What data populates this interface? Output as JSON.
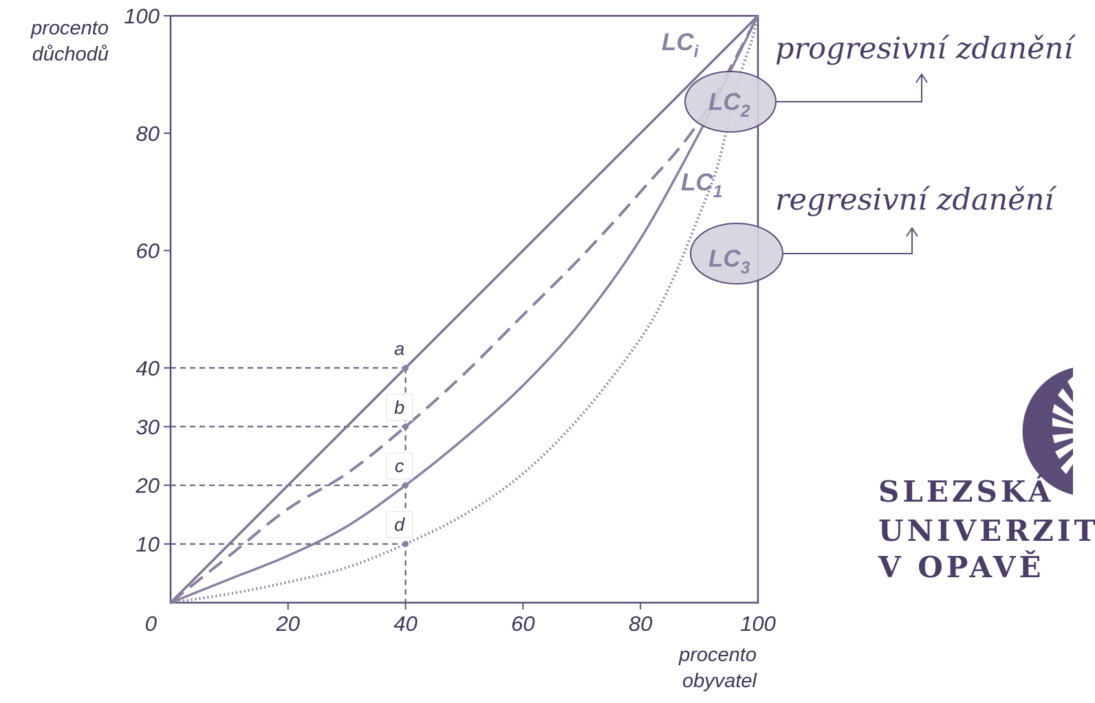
{
  "chart_data": {
    "type": "line",
    "ylabel": [
      "procento",
      "důchodů"
    ],
    "xlabel": [
      "procento",
      "obyvatel"
    ],
    "xlim": [
      0,
      100
    ],
    "ylim": [
      0,
      100
    ],
    "x_ticks": [
      0,
      20,
      40,
      60,
      80,
      100
    ],
    "y_ticks": [
      10,
      20,
      30,
      40,
      60,
      80,
      100
    ],
    "series": [
      {
        "name": "LCi",
        "label_main": "LC",
        "label_sub": "i",
        "style": "solid",
        "points": [
          [
            0,
            0
          ],
          [
            10,
            10
          ],
          [
            20,
            20
          ],
          [
            30,
            30
          ],
          [
            40,
            40
          ],
          [
            50,
            50
          ],
          [
            60,
            60
          ],
          [
            70,
            70
          ],
          [
            80,
            80
          ],
          [
            90,
            90
          ],
          [
            100,
            100
          ]
        ]
      },
      {
        "name": "LC2",
        "label_main": "LC",
        "label_sub": "2",
        "style": "dashed",
        "points": [
          [
            0,
            0
          ],
          [
            10,
            8
          ],
          [
            20,
            16
          ],
          [
            30,
            22
          ],
          [
            40,
            30
          ],
          [
            50,
            39
          ],
          [
            60,
            49
          ],
          [
            70,
            59
          ],
          [
            80,
            70
          ],
          [
            90,
            82
          ],
          [
            100,
            100
          ]
        ]
      },
      {
        "name": "LC1",
        "label_main": "LC",
        "label_sub": "1",
        "style": "solid",
        "points": [
          [
            0,
            0
          ],
          [
            10,
            4
          ],
          [
            20,
            8
          ],
          [
            30,
            13
          ],
          [
            40,
            20
          ],
          [
            50,
            28
          ],
          [
            60,
            37
          ],
          [
            70,
            48
          ],
          [
            80,
            62
          ],
          [
            90,
            80
          ],
          [
            95,
            90
          ],
          [
            100,
            100
          ]
        ]
      },
      {
        "name": "LC3",
        "label_main": "LC",
        "label_sub": "3",
        "style": "dotted",
        "points": [
          [
            0,
            0
          ],
          [
            10,
            1.5
          ],
          [
            20,
            3.5
          ],
          [
            30,
            6
          ],
          [
            40,
            10
          ],
          [
            50,
            15
          ],
          [
            60,
            22
          ],
          [
            70,
            32
          ],
          [
            80,
            45
          ],
          [
            85,
            54
          ],
          [
            90,
            66
          ],
          [
            93,
            74
          ],
          [
            95,
            82
          ],
          [
            97,
            90
          ],
          [
            99,
            96
          ],
          [
            100,
            100
          ]
        ]
      }
    ],
    "reference_points": [
      {
        "label": "a",
        "x": 40,
        "y": 40
      },
      {
        "label": "b",
        "x": 40,
        "y": 30
      },
      {
        "label": "c",
        "x": 40,
        "y": 20
      },
      {
        "label": "d",
        "x": 40,
        "y": 10
      }
    ],
    "annotations": [
      {
        "text": "progresivní zdanění",
        "target": "LC2"
      },
      {
        "text": "regresivní zdanění",
        "target": "LC3"
      }
    ],
    "colors": {
      "axis": "#5b4d78",
      "curve": "#8a80a0",
      "text": "#3f3555",
      "annotation": "#4a3d66",
      "ellipse": "#d6d1de"
    }
  },
  "logo": {
    "lines": [
      "SLEZSKÁ",
      "UNIVERZITA",
      "V OPAVĚ"
    ],
    "color": "#5b4d78"
  }
}
